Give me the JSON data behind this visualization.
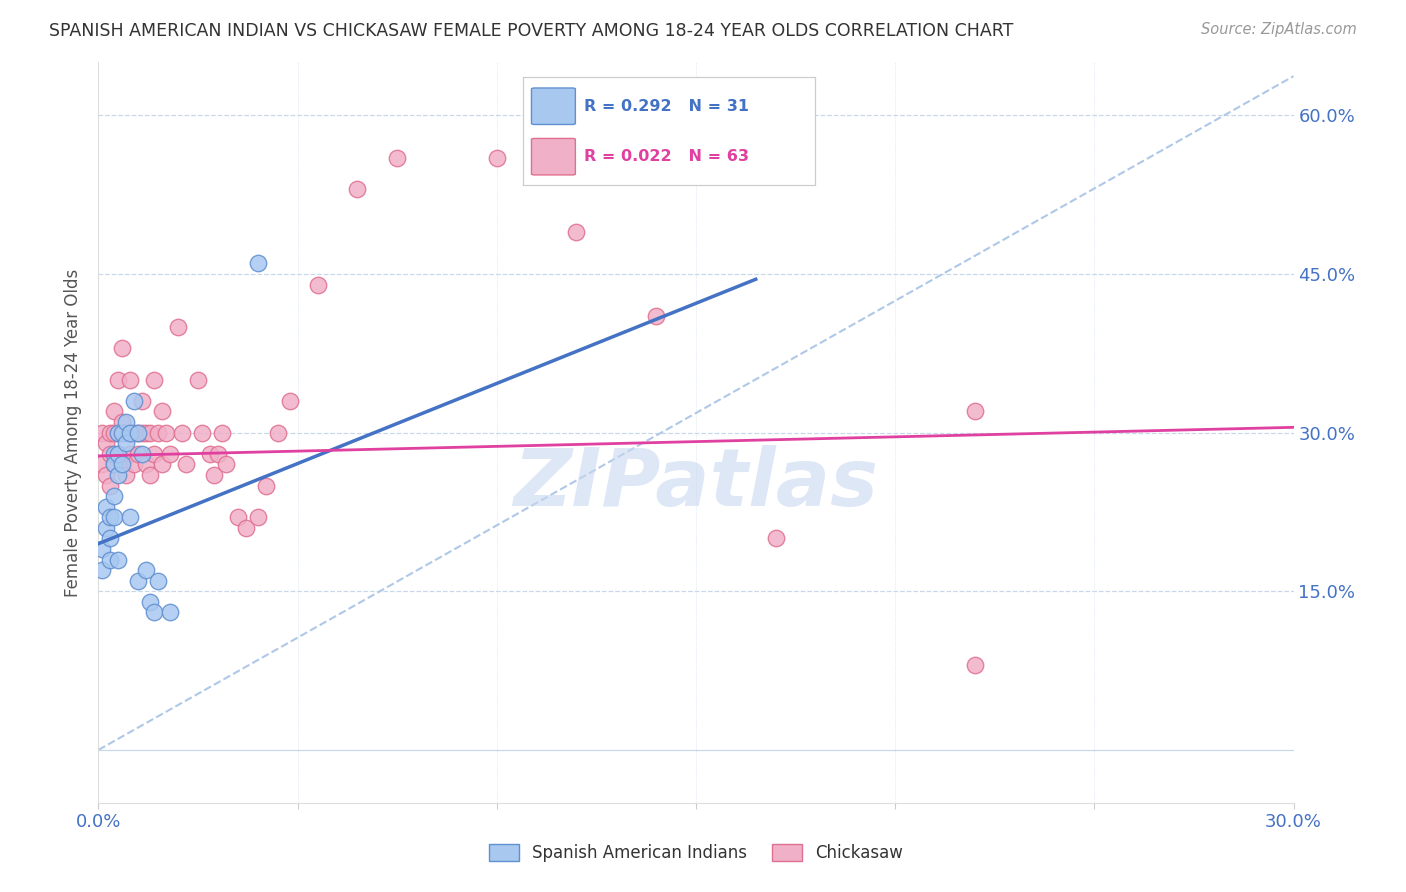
{
  "title": "SPANISH AMERICAN INDIAN VS CHICKASAW FEMALE POVERTY AMONG 18-24 YEAR OLDS CORRELATION CHART",
  "source": "Source: ZipAtlas.com",
  "ylabel": "Female Poverty Among 18-24 Year Olds",
  "xmin": 0.0,
  "xmax": 0.3,
  "ymin": -0.05,
  "ymax": 0.65,
  "blue_R": 0.292,
  "blue_N": 31,
  "pink_R": 0.022,
  "pink_N": 63,
  "blue_label": "Spanish American Indians",
  "pink_label": "Chickasaw",
  "blue_color": "#a8c8f0",
  "pink_color": "#f0b0c8",
  "blue_edge": "#6090d0",
  "pink_edge": "#e07090",
  "trend_blue_color": "#4472c4",
  "trend_pink_color": "#e040a0",
  "diag_color": "#b0c8e8",
  "background_color": "#ffffff",
  "grid_color": "#c8d8ec",
  "watermark": "ZIPatlas",
  "watermark_color": "#c8d8f0",
  "blue_x": [
    0.001,
    0.001,
    0.002,
    0.002,
    0.003,
    0.003,
    0.003,
    0.004,
    0.004,
    0.004,
    0.004,
    0.005,
    0.005,
    0.005,
    0.005,
    0.006,
    0.006,
    0.007,
    0.007,
    0.008,
    0.008,
    0.009,
    0.01,
    0.01,
    0.011,
    0.012,
    0.013,
    0.014,
    0.015,
    0.018,
    0.04
  ],
  "blue_y": [
    0.19,
    0.17,
    0.21,
    0.23,
    0.22,
    0.2,
    0.18,
    0.28,
    0.27,
    0.24,
    0.22,
    0.3,
    0.28,
    0.26,
    0.18,
    0.3,
    0.27,
    0.31,
    0.29,
    0.3,
    0.22,
    0.33,
    0.3,
    0.16,
    0.28,
    0.17,
    0.14,
    0.13,
    0.16,
    0.13,
    0.46
  ],
  "pink_x": [
    0.001,
    0.001,
    0.002,
    0.002,
    0.003,
    0.003,
    0.003,
    0.004,
    0.004,
    0.004,
    0.005,
    0.005,
    0.005,
    0.006,
    0.006,
    0.006,
    0.007,
    0.007,
    0.008,
    0.008,
    0.008,
    0.009,
    0.009,
    0.01,
    0.01,
    0.011,
    0.011,
    0.012,
    0.012,
    0.013,
    0.013,
    0.014,
    0.014,
    0.015,
    0.016,
    0.016,
    0.017,
    0.018,
    0.02,
    0.021,
    0.022,
    0.025,
    0.026,
    0.028,
    0.029,
    0.03,
    0.031,
    0.032,
    0.035,
    0.037,
    0.04,
    0.042,
    0.045,
    0.048,
    0.055,
    0.065,
    0.075,
    0.1,
    0.12,
    0.14,
    0.17,
    0.22,
    0.22
  ],
  "pink_y": [
    0.3,
    0.27,
    0.29,
    0.26,
    0.3,
    0.28,
    0.25,
    0.3,
    0.27,
    0.32,
    0.3,
    0.28,
    0.35,
    0.31,
    0.27,
    0.38,
    0.3,
    0.26,
    0.3,
    0.28,
    0.35,
    0.3,
    0.27,
    0.3,
    0.28,
    0.3,
    0.33,
    0.3,
    0.27,
    0.3,
    0.26,
    0.28,
    0.35,
    0.3,
    0.27,
    0.32,
    0.3,
    0.28,
    0.4,
    0.3,
    0.27,
    0.35,
    0.3,
    0.28,
    0.26,
    0.28,
    0.3,
    0.27,
    0.22,
    0.21,
    0.22,
    0.25,
    0.3,
    0.33,
    0.44,
    0.53,
    0.56,
    0.56,
    0.49,
    0.41,
    0.2,
    0.32,
    0.08
  ],
  "blue_trend_x0": 0.0,
  "blue_trend_y0": 0.195,
  "blue_trend_x1": 0.165,
  "blue_trend_y1": 0.445,
  "pink_trend_x0": 0.0,
  "pink_trend_y0": 0.278,
  "pink_trend_x1": 0.3,
  "pink_trend_y1": 0.305
}
